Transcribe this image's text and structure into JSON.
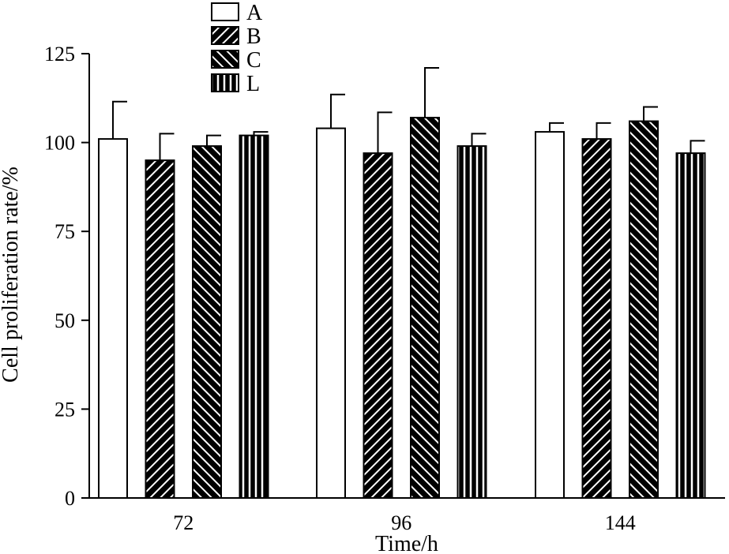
{
  "chart_data": {
    "type": "bar",
    "categories": [
      "72",
      "96",
      "144"
    ],
    "series": [
      {
        "name": "A",
        "values": [
          101,
          104,
          103
        ],
        "errors": [
          10.5,
          9.5,
          2.5
        ],
        "pattern": "open",
        "color": "#ffffff"
      },
      {
        "name": "B",
        "values": [
          95,
          97,
          101
        ],
        "errors": [
          7.5,
          11.5,
          4.5
        ],
        "pattern": "hatch-forward",
        "color": "#000000"
      },
      {
        "name": "C",
        "values": [
          99,
          107,
          106
        ],
        "errors": [
          3,
          14,
          4
        ],
        "pattern": "hatch-backward",
        "color": "#000000"
      },
      {
        "name": "L",
        "values": [
          102,
          99,
          97
        ],
        "errors": [
          1,
          3.5,
          3.5
        ],
        "pattern": "vertical-stripes",
        "color": "#000000"
      }
    ],
    "title": "",
    "xlabel": "Time/h",
    "ylabel": "Cell proliferation rate/%",
    "ylim": [
      0,
      125
    ],
    "yticks": [
      "0",
      "25",
      "50",
      "75",
      "100",
      "125"
    ],
    "grid": false,
    "legend": "top-center"
  }
}
